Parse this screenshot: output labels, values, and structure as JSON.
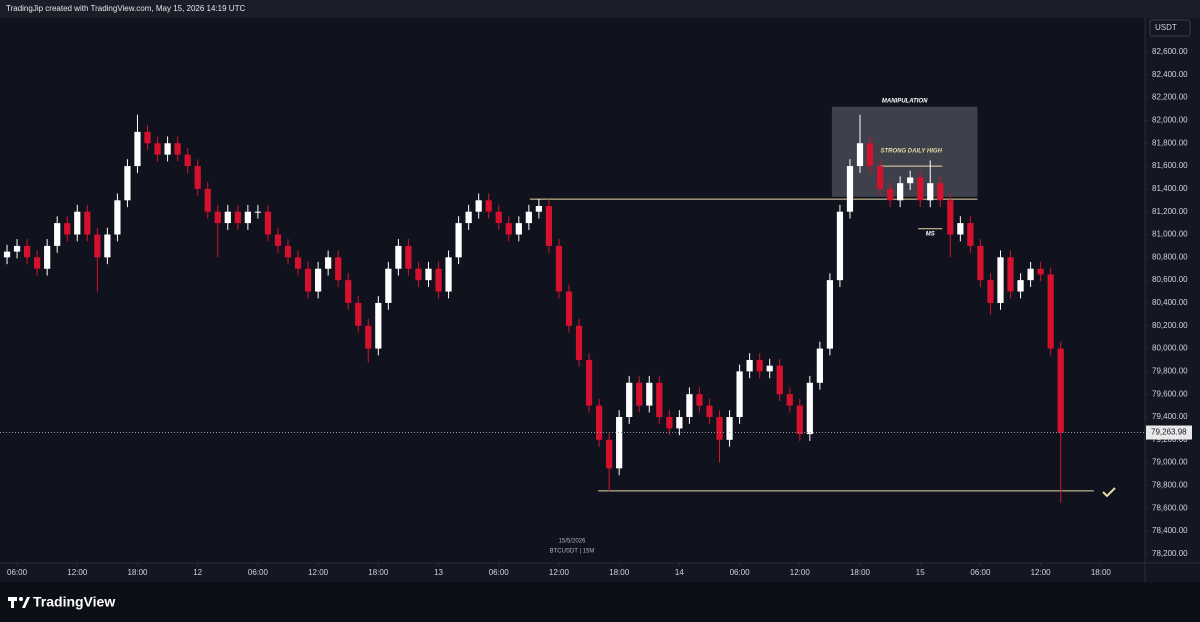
{
  "header": {
    "text": "TradingJip created with TradingView.com, May 15, 2026 14:19 UTC"
  },
  "footer": {
    "logo": "TradingView"
  },
  "chart_data": {
    "type": "candlestick",
    "currency": "USDT",
    "watermark_date": "15/5/2026",
    "watermark_symbol": "BTCUSDT | 15M",
    "up_color": "#ffffff",
    "down_color": "#d6112f",
    "grid": false,
    "x": [
      5,
      6,
      7,
      8,
      9,
      10,
      11,
      12,
      13,
      14,
      15,
      16,
      17,
      18,
      19,
      20,
      21,
      22,
      23,
      24,
      25,
      26,
      27,
      28,
      29,
      30,
      31,
      32,
      33,
      34,
      35,
      36,
      37,
      38,
      39,
      40,
      41,
      42,
      43,
      44,
      45,
      46,
      47,
      48,
      49,
      50,
      51,
      52,
      53,
      54,
      55,
      56,
      57,
      58,
      59,
      60,
      61,
      62,
      63,
      64,
      65,
      66,
      67,
      68,
      69,
      70,
      71,
      72,
      73,
      74,
      75,
      76,
      77,
      78,
      79,
      80,
      81,
      82,
      83,
      84,
      85,
      86,
      87,
      88,
      89,
      90,
      91,
      92,
      93,
      94,
      95,
      96,
      97,
      98,
      99,
      100,
      101,
      102,
      103,
      104,
      105,
      106,
      107,
      108,
      109,
      110
    ],
    "open": [
      80800,
      80850,
      80900,
      80800,
      80700,
      80900,
      81100,
      81000,
      81200,
      81000,
      80800,
      81000,
      81300,
      81600,
      81900,
      81800,
      81700,
      81800,
      81700,
      81600,
      81400,
      81200,
      81100,
      81200,
      81100,
      81200,
      81200,
      81000,
      80900,
      80800,
      80700,
      80500,
      80700,
      80800,
      80600,
      80400,
      80200,
      80000,
      80400,
      80700,
      80900,
      80700,
      80600,
      80700,
      80500,
      80800,
      81100,
      81200,
      81300,
      81200,
      81100,
      81000,
      81100,
      81200,
      81250,
      80900,
      80500,
      80200,
      79900,
      79500,
      79200,
      78950,
      79400,
      79700,
      79500,
      79700,
      79400,
      79300,
      79400,
      79600,
      79500,
      79400,
      79200,
      79400,
      79800,
      79900,
      79800,
      79850,
      79600,
      79500,
      79250,
      79700,
      80000,
      80600,
      81200,
      81600,
      81800,
      81600,
      81400,
      81300,
      81450,
      81500,
      81300,
      81450,
      81300,
      81000,
      81100,
      80900,
      80600,
      80400,
      80800,
      80500,
      80600,
      80700,
      80650,
      80000
    ],
    "high": [
      80910,
      80960,
      80960,
      80860,
      80960,
      81160,
      81160,
      81260,
      81260,
      81060,
      81060,
      81360,
      81660,
      82050,
      81960,
      81860,
      81860,
      81860,
      81760,
      81660,
      81460,
      81260,
      81260,
      81260,
      81260,
      81260,
      81260,
      81060,
      80960,
      80860,
      80760,
      80760,
      80860,
      80860,
      80660,
      80460,
      80260,
      80460,
      80760,
      80960,
      80960,
      80760,
      80760,
      80760,
      80860,
      81160,
      81260,
      81360,
      81360,
      81260,
      81160,
      81160,
      81260,
      81310,
      81310,
      80960,
      80560,
      80260,
      79960,
      79560,
      79260,
      79460,
      79760,
      79760,
      79760,
      79760,
      79460,
      79460,
      79660,
      79660,
      79560,
      79460,
      79460,
      79860,
      79960,
      79960,
      79910,
      79910,
      79660,
      79560,
      79760,
      80060,
      80660,
      81260,
      81660,
      82050,
      81860,
      81660,
      81460,
      81510,
      81560,
      81560,
      81650,
      81510,
      81360,
      81160,
      81160,
      80960,
      80660,
      80860,
      80860,
      80660,
      80760,
      80760,
      80710,
      80060
    ],
    "low": [
      80740,
      80790,
      80740,
      80640,
      80640,
      80840,
      80940,
      80940,
      80940,
      80500,
      80740,
      80940,
      81240,
      81540,
      81740,
      81640,
      81640,
      81640,
      81540,
      81340,
      81140,
      80800,
      81040,
      81040,
      81040,
      81140,
      80940,
      80840,
      80740,
      80640,
      80440,
      80440,
      80640,
      80540,
      80340,
      80140,
      79880,
      79940,
      80340,
      80640,
      80640,
      80540,
      80540,
      80440,
      80440,
      80740,
      81040,
      81140,
      81140,
      81040,
      80940,
      80940,
      81040,
      81140,
      80840,
      80440,
      80140,
      79840,
      79440,
      79140,
      78750,
      78890,
      79340,
      79440,
      79440,
      79340,
      79240,
      79240,
      79340,
      79440,
      79340,
      79000,
      79140,
      79340,
      79740,
      79740,
      79740,
      79540,
      79440,
      79190,
      79190,
      79640,
      79940,
      80540,
      81140,
      81540,
      81540,
      81340,
      81240,
      81240,
      81390,
      81240,
      81240,
      81240,
      80800,
      80940,
      80840,
      80540,
      80300,
      80340,
      80440,
      80440,
      80540,
      80590,
      79940,
      78650
    ],
    "close": [
      80850,
      80900,
      80800,
      80700,
      80900,
      81100,
      81000,
      81200,
      81000,
      80800,
      81000,
      81300,
      81600,
      81900,
      81800,
      81700,
      81800,
      81700,
      81600,
      81400,
      81200,
      81100,
      81200,
      81100,
      81200,
      81200,
      81000,
      80900,
      80800,
      80700,
      80500,
      80700,
      80800,
      80600,
      80400,
      80200,
      80000,
      80400,
      80700,
      80900,
      80700,
      80600,
      80700,
      80500,
      80800,
      81100,
      81200,
      81300,
      81200,
      81100,
      81000,
      81100,
      81200,
      81250,
      80900,
      80500,
      80200,
      79900,
      79500,
      79200,
      78950,
      79400,
      79700,
      79500,
      79700,
      79400,
      79300,
      79400,
      79600,
      79500,
      79400,
      79200,
      79400,
      79800,
      79900,
      79800,
      79850,
      79600,
      79500,
      79250,
      79700,
      80000,
      80600,
      81200,
      81600,
      81800,
      81600,
      81400,
      81300,
      81450,
      81500,
      81300,
      81450,
      81300,
      81000,
      81100,
      80900,
      80600,
      80400,
      80800,
      80500,
      80600,
      80700,
      80650,
      80000,
      79263.98
    ],
    "last_price": {
      "value": 79263.98,
      "label": "79,263.98"
    },
    "xlim": [
      4.3,
      118.4
    ],
    "xticks": [
      {
        "value": 6,
        "label": "06:00"
      },
      {
        "value": 12,
        "label": "12:00"
      },
      {
        "value": 18,
        "label": "18:00"
      },
      {
        "value": 24,
        "label": "12"
      },
      {
        "value": 30,
        "label": "06:00"
      },
      {
        "value": 36,
        "label": "12:00"
      },
      {
        "value": 42,
        "label": "18:00"
      },
      {
        "value": 48,
        "label": "13"
      },
      {
        "value": 54,
        "label": "06:00"
      },
      {
        "value": 60,
        "label": "12:00"
      },
      {
        "value": 66,
        "label": "18:00"
      },
      {
        "value": 72,
        "label": "14"
      },
      {
        "value": 78,
        "label": "06:00"
      },
      {
        "value": 84,
        "label": "12:00"
      },
      {
        "value": 90,
        "label": "18:00"
      },
      {
        "value": 96,
        "label": "15"
      },
      {
        "value": 102,
        "label": "06:00"
      },
      {
        "value": 108,
        "label": "12:00"
      },
      {
        "value": 114,
        "label": "18:00"
      }
    ],
    "ylim": [
      78120,
      83056
    ],
    "yticks": [
      {
        "value": 78200,
        "label": "78,200.00"
      },
      {
        "value": 78400,
        "label": "78,400.00"
      },
      {
        "value": 78600,
        "label": "78,600.00"
      },
      {
        "value": 78800,
        "label": "78,800.00"
      },
      {
        "value": 79000,
        "label": "79,000.00"
      },
      {
        "value": 79200,
        "label": "79,200.00"
      },
      {
        "value": 79400,
        "label": "79,400.00"
      },
      {
        "value": 79600,
        "label": "79,600.00"
      },
      {
        "value": 79800,
        "label": "79,800.00"
      },
      {
        "value": 80000,
        "label": "80,000.00"
      },
      {
        "value": 80200,
        "label": "80,200.00"
      },
      {
        "value": 80400,
        "label": "80,400.00"
      },
      {
        "value": 80600,
        "label": "80,600.00"
      },
      {
        "value": 80800,
        "label": "80,800.00"
      },
      {
        "value": 81000,
        "label": "81,000.00"
      },
      {
        "value": 81200,
        "label": "81,200.00"
      },
      {
        "value": 81400,
        "label": "81,400.00"
      },
      {
        "value": 81600,
        "label": "81,600.00"
      },
      {
        "value": 81800,
        "label": "81,800.00"
      },
      {
        "value": 82000,
        "label": "82,000.00"
      },
      {
        "value": 82200,
        "label": "82,200.00"
      },
      {
        "value": 82400,
        "label": "82,400.00"
      },
      {
        "value": 82600,
        "label": "82,600.00"
      }
    ],
    "zones": [
      {
        "x": [
          87.2,
          101.7
        ],
        "y": [
          81330,
          82120
        ],
        "label": "MANIPULATION"
      }
    ],
    "levels": [
      {
        "x": [
          57.1,
          101.7
        ],
        "y": 81310
      },
      {
        "x": [
          92,
          98.2
        ],
        "y": 81600,
        "label": "STRONG DAILY HIGH"
      },
      {
        "x": [
          95.8,
          98.2
        ],
        "y": 81050,
        "label": "MS"
      },
      {
        "x": [
          63.9,
          113.3
        ],
        "y": 78752
      }
    ]
  }
}
